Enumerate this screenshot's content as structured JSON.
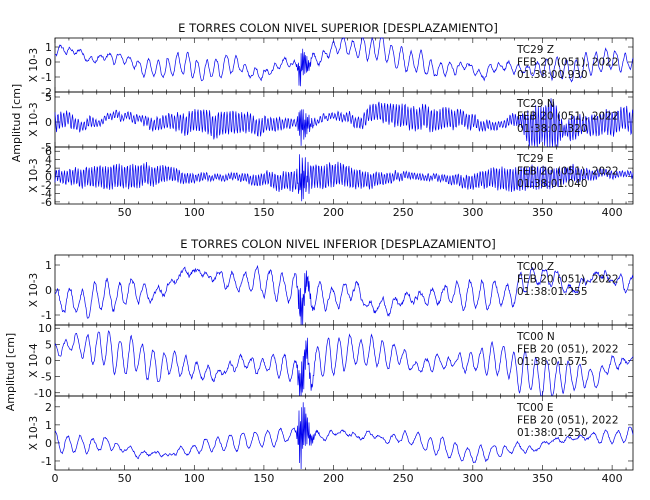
{
  "chart_data": [
    {
      "type": "line",
      "title": "E TORRES COLON NIVEL SUPERIOR [DESPLAZAMIENTO]",
      "ylabel": "Amplitud [cm]",
      "xlim": [
        0,
        415
      ],
      "xticks": [
        "50",
        "100",
        "150",
        "200",
        "250",
        "300",
        "350",
        "400"
      ],
      "series": [
        {
          "name": "TC29 Z",
          "date": "FEB 20 (051), 2022",
          "time": "01:38:00.930",
          "scale": "X 10-3",
          "ylim": [
            -2,
            1.6
          ],
          "yticks": [
            "1",
            "0",
            "-1",
            "-2"
          ],
          "event_x": 176,
          "features": {
            "base": 0.45,
            "drift": 0.6,
            "burst_amp": 1.4,
            "burst_x": 176,
            "noise": 0.5,
            "freq": 0.9
          }
        },
        {
          "name": "TC29 N",
          "date": "FEB 20 (051), 2022",
          "time": "01:38:01.320",
          "scale": "X 10-3",
          "ylim": [
            -5,
            6
          ],
          "yticks": [
            "5",
            "0",
            "-5"
          ],
          "event_x": 176,
          "features": {
            "base": 1.5,
            "drift": 0.2,
            "burst_amp": 4.5,
            "burst_x": 176,
            "late_amp": 5.5,
            "late_x": 352,
            "noise": 1.2,
            "freq": 3.0
          }
        },
        {
          "name": "TC29 E",
          "date": "FEB 20 (051), 2022",
          "time": "01:38:01.040",
          "scale": "X 10-3",
          "ylim": [
            -6.5,
            7
          ],
          "yticks": [
            "6",
            "4",
            "2",
            "0",
            "-2",
            "-4",
            "-6"
          ],
          "event_x": 176,
          "features": {
            "base": 1.8,
            "drift": 0.2,
            "burst_amp": 6.0,
            "burst_x": 176,
            "noise": 1.0,
            "freq": 3.2
          }
        }
      ]
    },
    {
      "type": "line",
      "title": "E TORRES COLON NIVEL INFERIOR [DESPLAZAMIENTO]",
      "ylabel": "Amplitud [cm]",
      "xlim": [
        0,
        415
      ],
      "xticks": [
        "0",
        "50",
        "100",
        "150",
        "200",
        "250",
        "300",
        "350",
        "400"
      ],
      "series": [
        {
          "name": "TC00 Z",
          "date": "FEB 20 (051), 2022",
          "time": "01:38:01.255",
          "scale": "X 10-3",
          "ylim": [
            -1.4,
            1.4
          ],
          "yticks": [
            "1",
            "0",
            "-1"
          ],
          "event_x": 176,
          "features": {
            "base": 0.35,
            "drift": 0.45,
            "burst_amp": 1.0,
            "burst_x": 176,
            "noise": 0.4,
            "freq": 0.7
          }
        },
        {
          "name": "TC00 N",
          "date": "FEB 20 (051), 2022",
          "time": "01:38:01.575",
          "scale": "X 10-4",
          "ylim": [
            -11,
            11
          ],
          "yticks": [
            "10",
            "5",
            "0",
            "-5",
            "-10"
          ],
          "event_x": 176,
          "features": {
            "base": 3.5,
            "drift": 3.0,
            "burst_amp": 9.0,
            "burst_x": 176,
            "noise": 2.5,
            "freq": 0.8
          }
        },
        {
          "name": "TC00 E",
          "date": "FEB 20 (051), 2022",
          "time": "01:38:01.250",
          "scale": "X 10-3",
          "ylim": [
            -1.5,
            2.6
          ],
          "yticks": [
            "2",
            "1",
            "0",
            "-1"
          ],
          "event_x": 176,
          "features": {
            "base": 0.3,
            "drift": 0.4,
            "burst_amp": 2.2,
            "burst_x": 176,
            "noise": 0.3,
            "freq": 0.7
          }
        }
      ]
    }
  ]
}
